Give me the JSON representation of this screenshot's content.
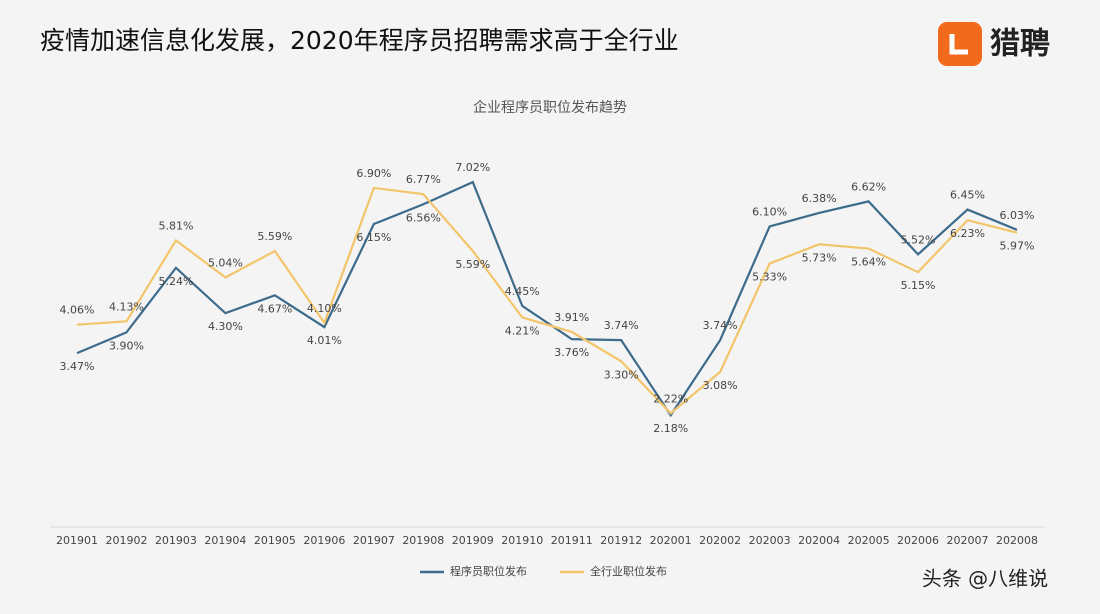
{
  "header": {
    "title": "疫情加速信息化发展，2020年程序员招聘需求高于全行业",
    "logo": "猎聘"
  },
  "watermark": "头条 @八维说",
  "chart_data": {
    "type": "line",
    "title": "企业程序员职位发布趋势",
    "categories": [
      "201901",
      "201902",
      "201903",
      "201904",
      "201905",
      "201906",
      "201907",
      "201908",
      "201909",
      "201910",
      "201911",
      "201912",
      "202001",
      "202002",
      "202003",
      "202004",
      "202005",
      "202006",
      "202007",
      "202008"
    ],
    "ylim": [
      1.5,
      7.5
    ],
    "legend": "bottom",
    "series": [
      {
        "name": "程序员职位发布",
        "color": "#3d6b8c",
        "values": [
          3.47,
          3.9,
          5.24,
          4.3,
          4.67,
          4.01,
          6.15,
          6.56,
          7.02,
          4.45,
          3.76,
          3.74,
          2.18,
          3.74,
          6.1,
          6.38,
          6.62,
          5.52,
          6.45,
          6.03
        ],
        "value_labels": [
          "3.47%",
          "3.90%",
          "5.24%",
          "4.30%",
          "4.67%",
          "4.01%",
          "6.15%",
          "6.56%",
          "7.02%",
          "4.45%",
          "3.76%",
          "3.74%",
          "2.18%",
          "3.74%",
          "6.10%",
          "6.38%",
          "6.62%",
          "5.52%",
          "6.45%",
          "6.03%"
        ]
      },
      {
        "name": "全行业职位发布",
        "color": "#f3c56b",
        "values": [
          4.06,
          4.13,
          5.81,
          5.04,
          5.59,
          4.1,
          6.9,
          6.77,
          5.59,
          4.21,
          3.91,
          3.3,
          2.22,
          3.08,
          5.33,
          5.73,
          5.64,
          5.15,
          6.23,
          5.97
        ],
        "value_labels": [
          "4.06%",
          "4.13%",
          "5.81%",
          "5.04%",
          "5.59%",
          "4.10%",
          "6.90%",
          "6.77%",
          "5.59%",
          "4.21%",
          "3.91%",
          "3.30%",
          "2.22%",
          "3.08%",
          "5.33%",
          "5.73%",
          "5.64%",
          "5.15%",
          "6.23%",
          "5.97%"
        ]
      }
    ]
  }
}
